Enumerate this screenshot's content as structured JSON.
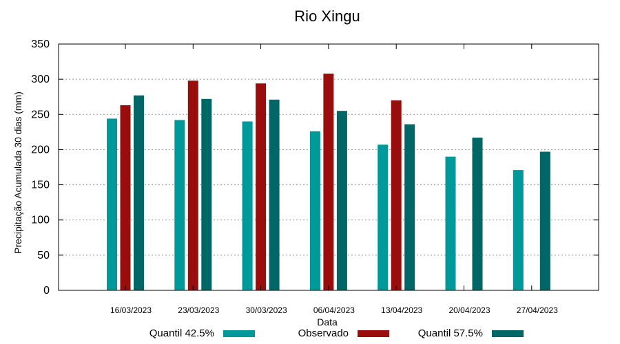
{
  "chart_data": {
    "type": "bar",
    "title": "Rio Xingu",
    "xlabel": "Data",
    "ylabel": "Precipitação Acumulada 30 dias (mm)",
    "ylim": [
      0,
      350
    ],
    "yticks": [
      0,
      50,
      100,
      150,
      200,
      250,
      300,
      350
    ],
    "grid": true,
    "legend_position": "bottom",
    "categories": [
      "16/03/2023",
      "23/03/2023",
      "30/03/2023",
      "06/04/2023",
      "13/04/2023",
      "20/04/2023",
      "27/04/2023"
    ],
    "series": [
      {
        "name": "Quantil 42.5%",
        "color": "#009999",
        "values": [
          244,
          242,
          240,
          226,
          207,
          190,
          171
        ]
      },
      {
        "name": "Observado",
        "color": "#990d0d",
        "values": [
          263,
          298,
          294,
          308,
          270,
          null,
          null
        ]
      },
      {
        "name": "Quantil 57.5%",
        "color": "#006666",
        "values": [
          277,
          272,
          271,
          255,
          236,
          217,
          197
        ]
      }
    ]
  }
}
